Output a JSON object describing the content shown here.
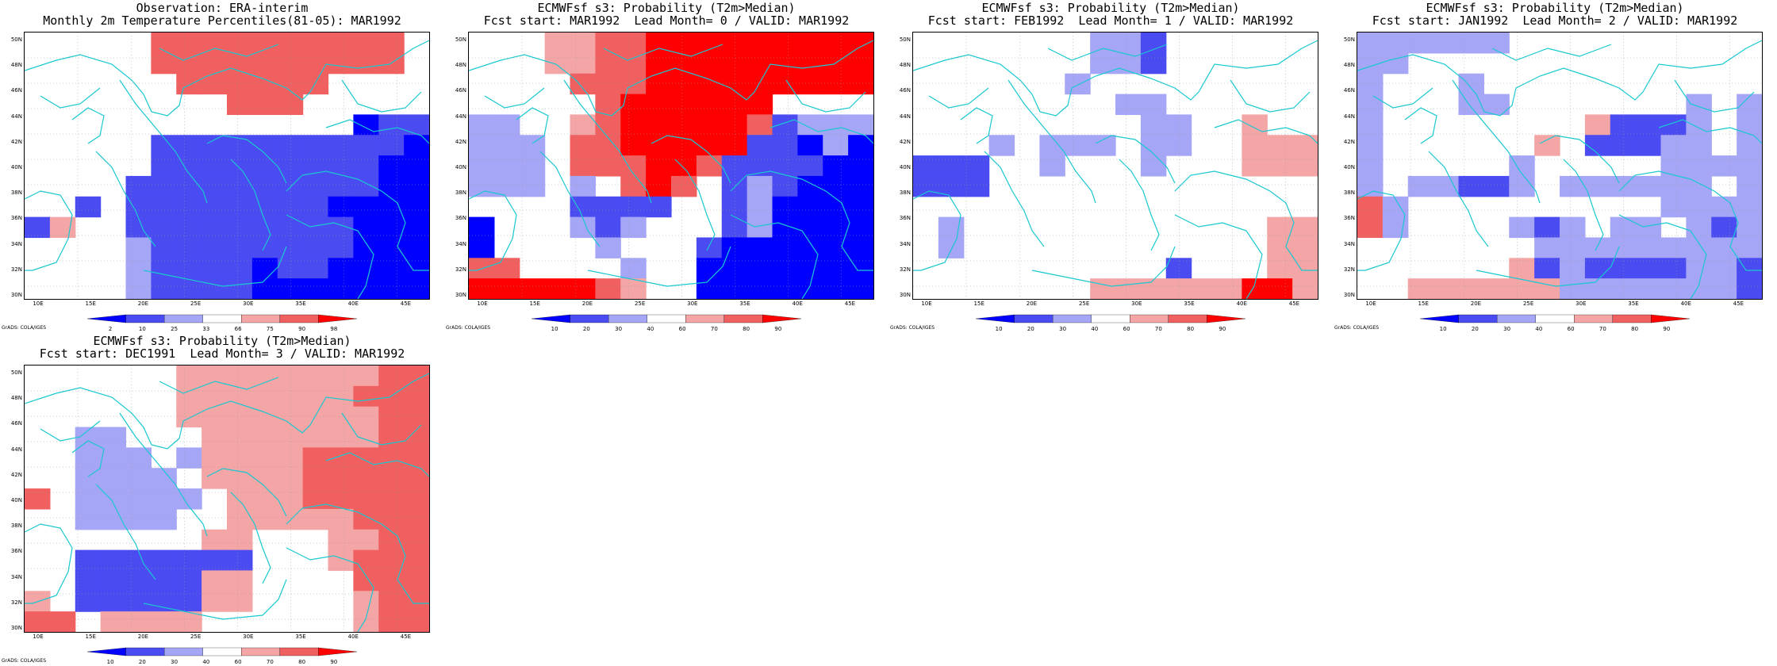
{
  "credit": "GrADS: COLA/IGES",
  "lat_labels": [
    "50N",
    "48N",
    "46N",
    "44N",
    "42N",
    "40N",
    "38N",
    "36N",
    "34N",
    "32N",
    "30N"
  ],
  "lon_labels": [
    "10E",
    "15E",
    "20E",
    "25E",
    "30E",
    "35E",
    "40E",
    "45E"
  ],
  "scales": {
    "pct": {
      "labels": [
        "2",
        "10",
        "25",
        "33",
        "66",
        "75",
        "90",
        "98"
      ],
      "colors": [
        "#0000ff",
        "#4b4bf2",
        "#a6a6f6",
        "#ffffff",
        "#f4a6a6",
        "#f06060",
        "#ff0000"
      ]
    },
    "prob": {
      "labels": [
        "10",
        "20",
        "30",
        "40",
        "60",
        "70",
        "80",
        "90"
      ],
      "colors": [
        "#0000ff",
        "#4b4bf2",
        "#a6a6f6",
        "#ffffff",
        "#f4a6a6",
        "#f06060",
        "#ff0000"
      ]
    }
  },
  "panels": [
    {
      "title1": "Observation: ERA-interim",
      "title2": "Monthly 2m Temperature Percentiles(81-05): MAR1992",
      "scale": "pct",
      "grid": [
        "0000066666666660",
        "0000066666666660",
        "0000006666660000",
        "0000000066600000",
        "0000000000000122",
        "0000022222222221",
        "0000022222222211",
        "0000222222222211",
        "0020222222221111",
        "2400222222222111",
        "0000322222222111",
        "0000322221221111",
        "0000322221111111"
      ]
    },
    {
      "title1": "ECMWFsf s3: Probability (T2m>Median)",
      "title2": "Fcst start: MAR1992  Lead Month= 0 / VALID: MAR1992",
      "scale": "prob",
      "grid": [
        "0004466777777777",
        "0004466777777777",
        "0000666777777777",
        "0000067777770000",
        "3300467777762333",
        "3330667777722131",
        "3330666776222211",
        "3330306760232111",
        "0000222200231111",
        "1000323000231111",
        "1000030002111111",
        "6600003001111111",
        "7777754001111111"
      ]
    },
    {
      "title1": "ECMWFsf s3: Probability (T2m>Median)",
      "title2": "Fcst start: FEB1992  Lead Month= 1 / VALID: MAR1992",
      "scale": "prob",
      "grid": [
        "0000000332000000",
        "0000000332000000",
        "0000003000000000",
        "0000000033000000",
        "0000000003300400",
        "0003033303300444",
        "2220030003000444",
        "2220000000000000",
        "0000000000000000",
        "0300000000000044",
        "0300000000000044",
        "0000000000200044",
        "0000000444444774"
      ]
    },
    {
      "title1": "ECMWFsf s3: Probability (T2m>Median)",
      "title2": "Fcst start: JAN1992  Lead Month= 2 / VALID: MAR1992",
      "scale": "prob",
      "grid": [
        "3333330000000000",
        "3300000000000000",
        "3000300000000000",
        "3000330000000303",
        "3000000004222303",
        "3000000402223303",
        "3000003000003333",
        "3033223033333303",
        "6300000000003333",
        "6300003230330323",
        "0000000333333333",
        "0000004232222332",
        "0044444433333332"
      ]
    },
    {
      "title1": "ECMWFsf s3: Probability (T2m>Median)",
      "title2": "Fcst start: DEC1991  Lead Month= 3 / VALID: MAR1992",
      "scale": "prob",
      "grid": [
        "0000004444444455",
        "0000004444444555",
        "0000004444444455",
        "0033000444444455",
        "0033303444455555",
        "0033330444455555",
        "5033333044455555",
        "0033330044444556",
        "0000000440004456",
        "0022222220004556",
        "0022222440000556",
        "4022222440000455",
        "5504444000000455"
      ]
    }
  ]
}
